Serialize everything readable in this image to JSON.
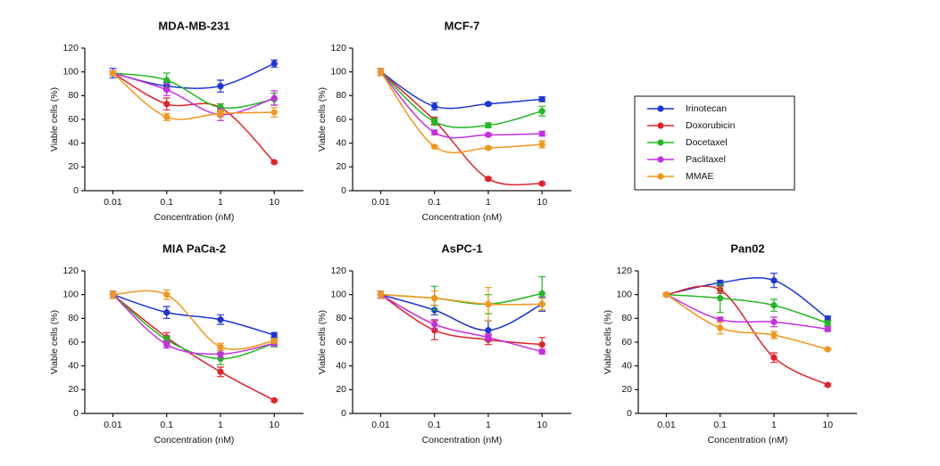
{
  "chart_data": [
    {
      "type": "scatter",
      "title": "MDA-MB-231",
      "x_label": "Concentration (nM)",
      "y_label": "Viable cells (%)",
      "log_x": true,
      "x": [
        0.01,
        0.1,
        1,
        10
      ],
      "xlim": [
        0.003,
        35
      ],
      "xticks": [
        0.01,
        0.1,
        1,
        10
      ],
      "ylim": [
        0,
        120
      ],
      "yticks": [
        0,
        20,
        40,
        60,
        80,
        100,
        120
      ],
      "series": [
        {
          "values": [
            99,
            88,
            88,
            107
          ],
          "errors": [
            4,
            3,
            5,
            3
          ]
        },
        {
          "values": [
            99,
            73,
            70,
            24
          ],
          "errors": [
            2,
            5,
            3,
            1
          ]
        },
        {
          "values": [
            99,
            93,
            70,
            77
          ],
          "errors": [
            2,
            6,
            3,
            5
          ]
        },
        {
          "values": [
            99,
            85,
            64,
            78
          ],
          "errors": [
            2,
            5,
            5,
            6
          ]
        },
        {
          "values": [
            99,
            62,
            65,
            66
          ],
          "errors": [
            2,
            3,
            3,
            4
          ]
        }
      ]
    },
    {
      "type": "scatter",
      "title": "MCF-7",
      "x_label": "Concentration (nM)",
      "y_label": "Viable cells (%)",
      "log_x": true,
      "x": [
        0.01,
        0.1,
        1,
        10
      ],
      "xlim": [
        0.003,
        35
      ],
      "xticks": [
        0.01,
        0.1,
        1,
        10
      ],
      "ylim": [
        0,
        120
      ],
      "yticks": [
        0,
        20,
        40,
        60,
        80,
        100,
        120
      ],
      "series": [
        {
          "values": [
            100,
            71,
            73,
            77
          ],
          "errors": [
            3,
            3,
            1,
            2
          ]
        },
        {
          "values": [
            100,
            59,
            10,
            6
          ],
          "errors": [
            3,
            3,
            1,
            1
          ]
        },
        {
          "values": [
            100,
            58,
            55,
            67
          ],
          "errors": [
            3,
            3,
            2,
            4
          ]
        },
        {
          "values": [
            100,
            49,
            47,
            48
          ],
          "errors": [
            3,
            2,
            1,
            2
          ]
        },
        {
          "values": [
            100,
            37,
            36,
            39
          ],
          "errors": [
            3,
            1,
            1,
            3
          ]
        }
      ]
    },
    {
      "type": "scatter",
      "title": "MIA PaCa-2",
      "x_label": "Concentration (nM)",
      "y_label": "Viable cells (%)",
      "log_x": true,
      "x": [
        0.01,
        0.1,
        1,
        10
      ],
      "xlim": [
        0.003,
        35
      ],
      "xticks": [
        0.01,
        0.1,
        1,
        10
      ],
      "ylim": [
        0,
        120
      ],
      "yticks": [
        0,
        20,
        40,
        60,
        80,
        100,
        120
      ],
      "series": [
        {
          "values": [
            100,
            85,
            79,
            66
          ],
          "errors": [
            3,
            5,
            4,
            2
          ]
        },
        {
          "values": [
            100,
            64,
            35,
            11
          ],
          "errors": [
            3,
            4,
            4,
            1
          ]
        },
        {
          "values": [
            100,
            62,
            46,
            59
          ],
          "errors": [
            3,
            3,
            5,
            3
          ]
        },
        {
          "values": [
            100,
            58,
            50,
            59
          ],
          "errors": [
            3,
            3,
            3,
            2
          ]
        },
        {
          "values": [
            100,
            100,
            56,
            61
          ],
          "errors": [
            3,
            4,
            3,
            2
          ]
        }
      ]
    },
    {
      "type": "scatter",
      "title": "AsPC-1",
      "x_label": "Concentration (nM)",
      "y_label": "Viable cells (%)",
      "log_x": true,
      "x": [
        0.01,
        0.1,
        1,
        10
      ],
      "xlim": [
        0.003,
        35
      ],
      "xticks": [
        0.01,
        0.1,
        1,
        10
      ],
      "ylim": [
        0,
        120
      ],
      "yticks": [
        0,
        20,
        40,
        60,
        80,
        100,
        120
      ],
      "series": [
        {
          "values": [
            100,
            87,
            70,
            92
          ],
          "errors": [
            3,
            4,
            8,
            6
          ]
        },
        {
          "values": [
            100,
            70,
            62,
            58
          ],
          "errors": [
            3,
            8,
            4,
            6
          ]
        },
        {
          "values": [
            100,
            97,
            92,
            101
          ],
          "errors": [
            3,
            10,
            8,
            14
          ]
        },
        {
          "values": [
            100,
            75,
            64,
            52
          ],
          "errors": [
            3,
            4,
            3,
            2
          ]
        },
        {
          "values": [
            100,
            97,
            92,
            92
          ],
          "errors": [
            3,
            6,
            14,
            5
          ]
        }
      ]
    },
    {
      "type": "scatter",
      "title": "Pan02",
      "x_label": "Concentration (nM)",
      "y_label": "Viable cells (%)",
      "log_x": true,
      "x": [
        0.01,
        0.1,
        1,
        10
      ],
      "xlim": [
        0.003,
        35
      ],
      "xticks": [
        0.01,
        0.1,
        1,
        10
      ],
      "ylim": [
        0,
        120
      ],
      "yticks": [
        0,
        20,
        40,
        60,
        80,
        100,
        120
      ],
      "series": [
        {
          "values": [
            100,
            110,
            112,
            80
          ],
          "errors": [
            1,
            2,
            6,
            2
          ]
        },
        {
          "values": [
            100,
            104,
            47,
            24
          ],
          "errors": [
            1,
            3,
            4,
            1
          ]
        },
        {
          "values": [
            100,
            97,
            91,
            76
          ],
          "errors": [
            1,
            12,
            5,
            2
          ]
        },
        {
          "values": [
            100,
            79,
            77,
            71
          ],
          "errors": [
            1,
            2,
            4,
            2
          ]
        },
        {
          "values": [
            100,
            72,
            66,
            54
          ],
          "errors": [
            1,
            5,
            3,
            1
          ]
        }
      ]
    }
  ],
  "legend": [
    {
      "name": "Irinotecan",
      "color": "#1d35d6"
    },
    {
      "name": "Doxorubicin",
      "color": "#e0232b"
    },
    {
      "name": "Docetaxel",
      "color": "#22b822"
    },
    {
      "name": "Paclitaxel",
      "color": "#c42fe0"
    },
    {
      "name": "MMAE",
      "color": "#f2961c"
    }
  ]
}
